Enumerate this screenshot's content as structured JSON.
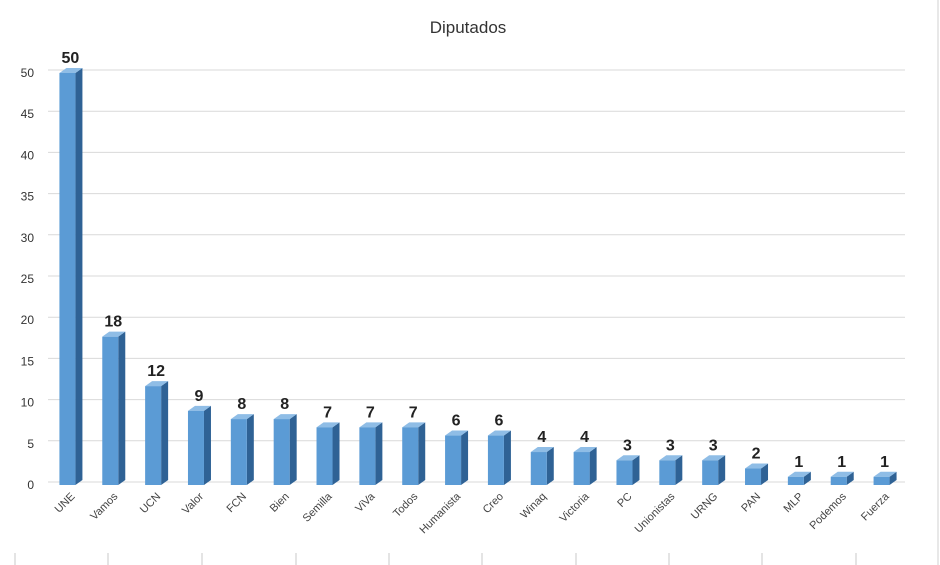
{
  "chart_data": {
    "type": "bar",
    "title": "Diputados",
    "xlabel": "",
    "ylabel": "",
    "categories": [
      "UNE",
      "Vamos",
      "UCN",
      "Valor",
      "FCN",
      "Bien",
      "Semilla",
      "ViVa",
      "Todos",
      "Humanista",
      "Creo",
      "Winaq",
      "Victoria",
      "PC",
      "Unionistas",
      "URNG",
      "PAN",
      "MLP",
      "Podemos",
      "Fuerza"
    ],
    "values": [
      50,
      18,
      12,
      9,
      8,
      8,
      7,
      7,
      7,
      6,
      6,
      4,
      4,
      3,
      3,
      3,
      2,
      1,
      1,
      1
    ],
    "ylim": [
      0,
      50
    ],
    "yticks": [
      0,
      5,
      10,
      15,
      20,
      25,
      30,
      35,
      40,
      45,
      50
    ],
    "grid": true,
    "legend": "none",
    "colors": {
      "bar_front": "#5b9bd5",
      "bar_side": "#2f6295",
      "bar_top": "#8fbde6",
      "grid": "#d9d9d9"
    }
  }
}
